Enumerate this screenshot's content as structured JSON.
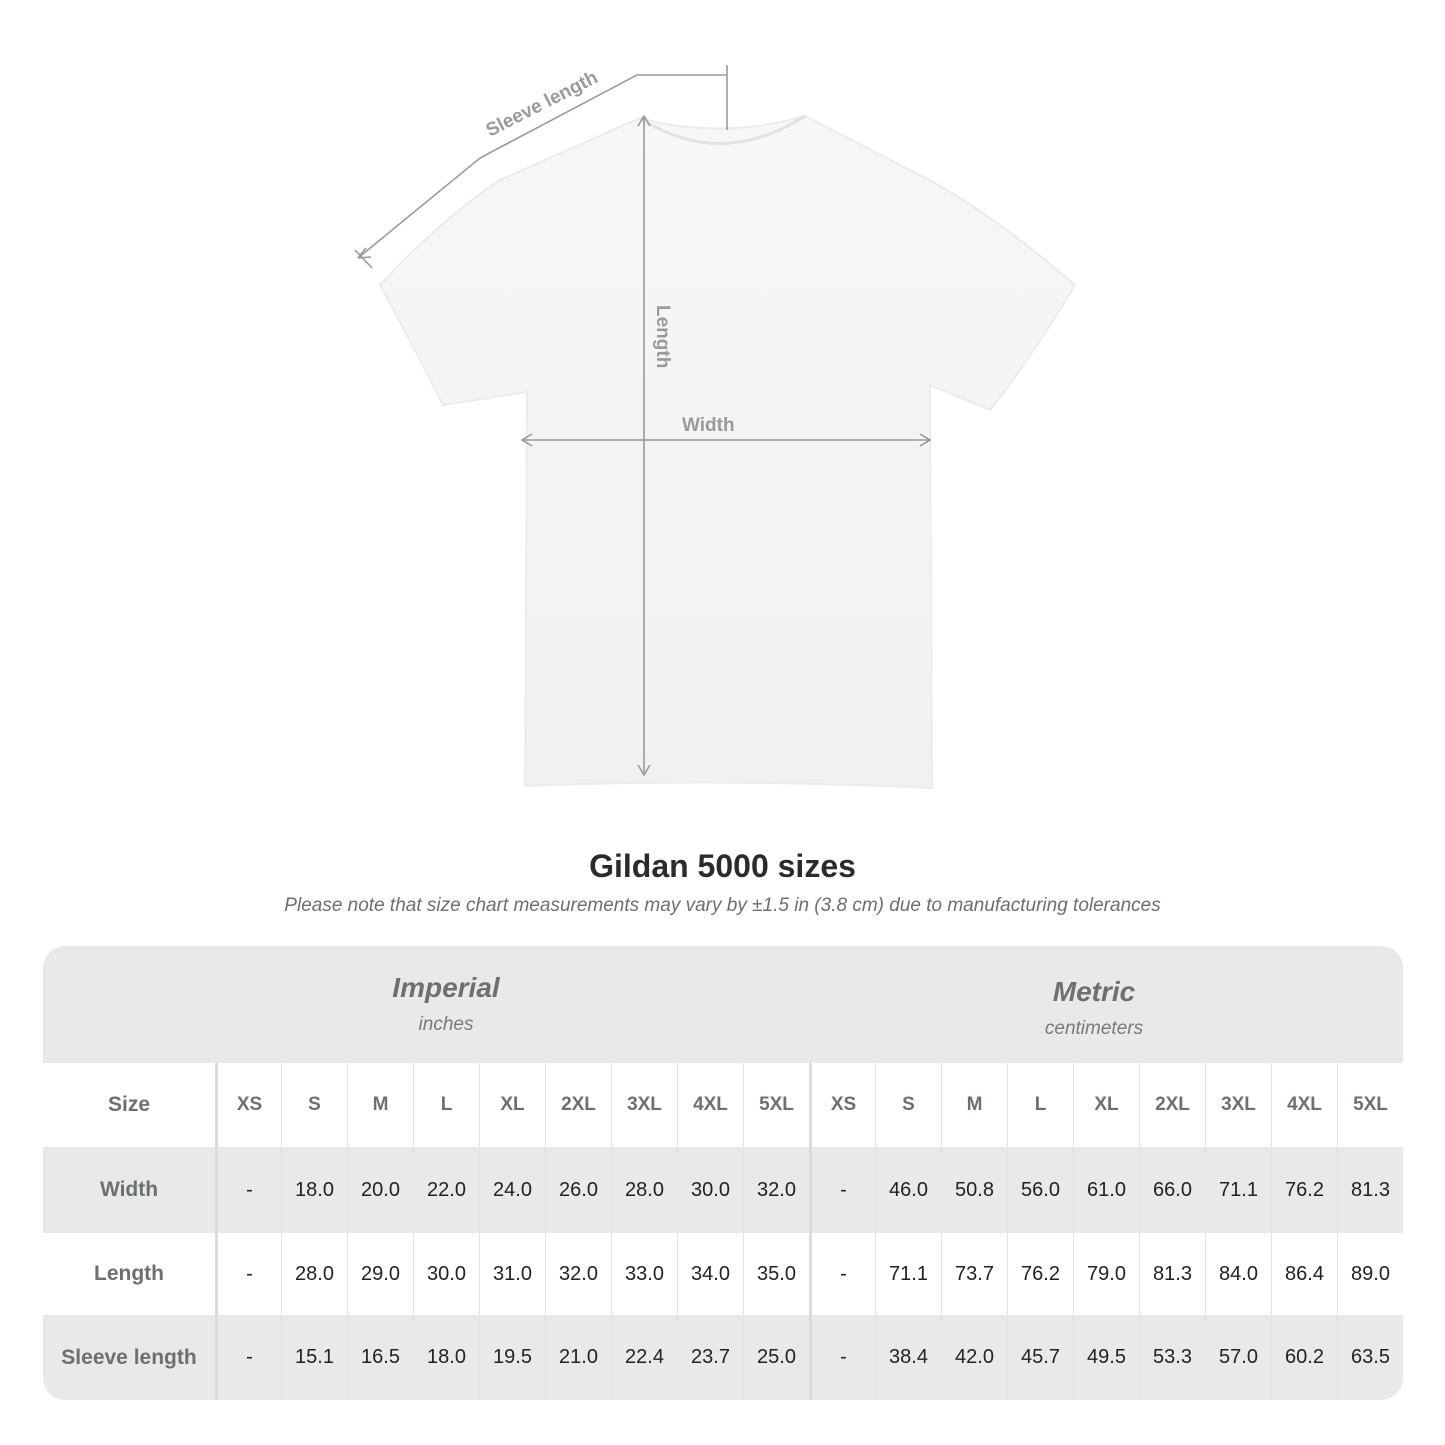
{
  "diagram": {
    "labels": {
      "sleeve": "Sleeve length",
      "length": "Length",
      "width": "Width"
    }
  },
  "title": "Gildan 5000 sizes",
  "note": "Please note that size chart measurements may vary by ±1.5 in (3.8 cm) due to manufacturing tolerances",
  "table": {
    "imperial": {
      "name": "Imperial",
      "unit": "inches"
    },
    "metric": {
      "name": "Metric",
      "unit": "centimeters"
    },
    "size_label": "Size",
    "sizes": [
      "XS",
      "S",
      "M",
      "L",
      "XL",
      "2XL",
      "3XL",
      "4XL",
      "5XL"
    ],
    "rows": [
      {
        "label": "Width",
        "imperial": [
          "-",
          "18.0",
          "20.0",
          "22.0",
          "24.0",
          "26.0",
          "28.0",
          "30.0",
          "32.0"
        ],
        "metric": [
          "-",
          "46.0",
          "50.8",
          "56.0",
          "61.0",
          "66.0",
          "71.1",
          "76.2",
          "81.3"
        ]
      },
      {
        "label": "Length",
        "imperial": [
          "-",
          "28.0",
          "29.0",
          "30.0",
          "31.0",
          "32.0",
          "33.0",
          "34.0",
          "35.0"
        ],
        "metric": [
          "-",
          "71.1",
          "73.7",
          "76.2",
          "79.0",
          "81.3",
          "84.0",
          "86.4",
          "89.0"
        ]
      },
      {
        "label": "Sleeve length",
        "imperial": [
          "-",
          "15.1",
          "16.5",
          "18.0",
          "19.5",
          "21.0",
          "22.4",
          "23.7",
          "25.0"
        ],
        "metric": [
          "-",
          "38.4",
          "42.0",
          "45.7",
          "49.5",
          "53.3",
          "57.0",
          "60.2",
          "63.5"
        ]
      }
    ]
  },
  "colors": {
    "band": "#e9e9e9",
    "label": "#6b7070",
    "measure_line": "#9a9a9a"
  }
}
